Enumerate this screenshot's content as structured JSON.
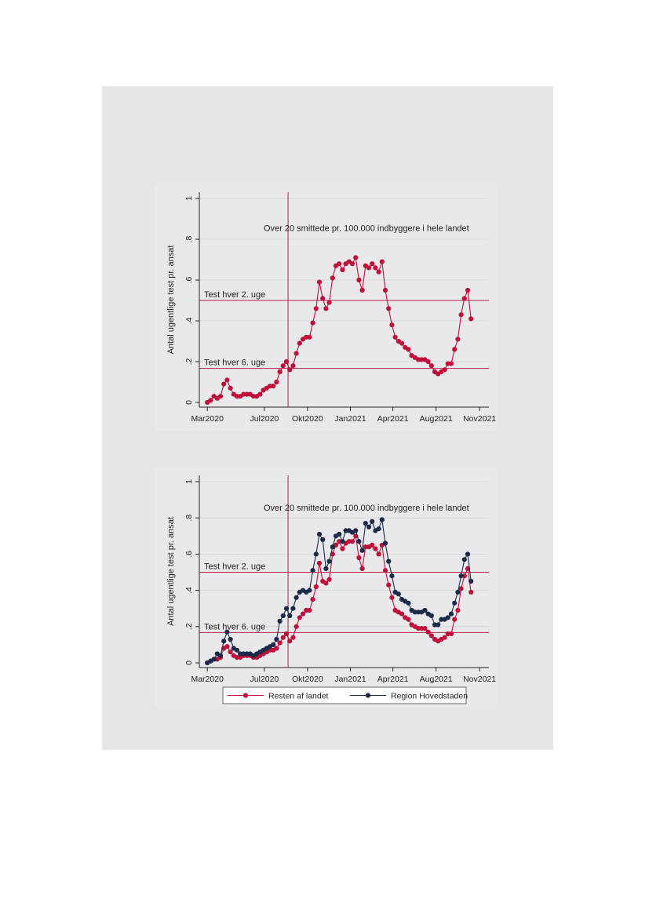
{
  "chart_data": [
    {
      "type": "line",
      "ylabel": "Antal ugentlige test pr. ansat",
      "xlabel": "",
      "ylim": [
        0,
        1
      ],
      "yticks": [
        0,
        0.2,
        0.4,
        0.6,
        0.8,
        1
      ],
      "ytick_labels": [
        "0",
        ".2",
        ".4",
        ".6",
        ".8",
        "1"
      ],
      "xticks": [
        {
          "week": 0,
          "label": "Mar2020"
        },
        {
          "week": 17.3,
          "label": "Jul2020"
        },
        {
          "week": 30.4,
          "label": "Okt2020"
        },
        {
          "week": 43.4,
          "label": "Jan2021"
        },
        {
          "week": 56.3,
          "label": "Apr2021"
        },
        {
          "week": 69.4,
          "label": "Aug2021"
        },
        {
          "week": 82.6,
          "label": "Nov2021"
        }
      ],
      "x_range_weeks": [
        -1,
        84
      ],
      "annotations": [
        {
          "text": "Over 20 smittede pr. 100.000 indbyggere i hele landet"
        },
        {
          "text": "Test hver 2. uge",
          "y": 0.5
        },
        {
          "text": "Test hver 6. uge",
          "y": 0.167
        }
      ],
      "vline_week": 24.5,
      "hlines": [
        0.5,
        0.167
      ],
      "grid": true,
      "legend": null,
      "series": [
        {
          "color": "#c0103a",
          "values": [
            0.0,
            0.01,
            0.03,
            0.02,
            0.03,
            0.09,
            0.11,
            0.07,
            0.04,
            0.03,
            0.03,
            0.04,
            0.04,
            0.04,
            0.03,
            0.03,
            0.04,
            0.06,
            0.07,
            0.08,
            0.08,
            0.1,
            0.15,
            0.18,
            0.2,
            0.16,
            0.18,
            0.24,
            0.29,
            0.31,
            0.32,
            0.32,
            0.39,
            0.46,
            0.59,
            0.51,
            0.46,
            0.49,
            0.61,
            0.67,
            0.68,
            0.65,
            0.68,
            0.69,
            0.68,
            0.71,
            0.6,
            0.55,
            0.67,
            0.66,
            0.68,
            0.66,
            0.64,
            0.69,
            0.55,
            0.46,
            0.38,
            0.32,
            0.3,
            0.29,
            0.27,
            0.26,
            0.23,
            0.22,
            0.21,
            0.21,
            0.21,
            0.2,
            0.18,
            0.15,
            0.14,
            0.15,
            0.16,
            0.19,
            0.19,
            0.26,
            0.31,
            0.43,
            0.51,
            0.55,
            0.41
          ]
        }
      ]
    },
    {
      "type": "line",
      "ylabel": "Antal ugentlige test pr. ansat",
      "xlabel": "",
      "ylim": [
        0,
        1
      ],
      "yticks": [
        0,
        0.2,
        0.4,
        0.6,
        0.8,
        1
      ],
      "ytick_labels": [
        "0",
        ".2",
        ".4",
        ".6",
        ".8",
        "1"
      ],
      "xticks": [
        {
          "week": 0,
          "label": "Mar2020"
        },
        {
          "week": 17.3,
          "label": "Jul2020"
        },
        {
          "week": 30.4,
          "label": "Okt2020"
        },
        {
          "week": 43.4,
          "label": "Jan2021"
        },
        {
          "week": 56.3,
          "label": "Apr2021"
        },
        {
          "week": 69.4,
          "label": "Aug2021"
        },
        {
          "week": 82.6,
          "label": "Nov2021"
        }
      ],
      "x_range_weeks": [
        -1,
        84
      ],
      "annotations": [
        {
          "text": "Over 20 smittede pr. 100.000 indbyggere i hele landet"
        },
        {
          "text": "Test hver 2. uge",
          "y": 0.5
        },
        {
          "text": "Test hver 6. uge",
          "y": 0.167
        }
      ],
      "vline_week": 24.5,
      "hlines": [
        0.5,
        0.167
      ],
      "grid": true,
      "legend": "bottom",
      "series": [
        {
          "name": "Resten af landet",
          "color": "#c0103a",
          "values": [
            0.0,
            0.01,
            0.02,
            0.02,
            0.03,
            0.08,
            0.09,
            0.06,
            0.04,
            0.03,
            0.03,
            0.04,
            0.04,
            0.04,
            0.03,
            0.03,
            0.04,
            0.05,
            0.06,
            0.07,
            0.07,
            0.08,
            0.11,
            0.14,
            0.16,
            0.12,
            0.14,
            0.2,
            0.25,
            0.27,
            0.29,
            0.29,
            0.35,
            0.42,
            0.55,
            0.45,
            0.44,
            0.46,
            0.6,
            0.65,
            0.67,
            0.63,
            0.66,
            0.67,
            0.67,
            0.7,
            0.58,
            0.52,
            0.64,
            0.64,
            0.65,
            0.63,
            0.6,
            0.65,
            0.51,
            0.43,
            0.36,
            0.29,
            0.28,
            0.27,
            0.25,
            0.24,
            0.21,
            0.2,
            0.19,
            0.19,
            0.19,
            0.17,
            0.15,
            0.13,
            0.12,
            0.13,
            0.14,
            0.16,
            0.16,
            0.24,
            0.29,
            0.41,
            0.48,
            0.52,
            0.39
          ]
        },
        {
          "name": "Region Hovedstaden",
          "color": "#1a2a48",
          "values": [
            0.0,
            0.01,
            0.02,
            0.05,
            0.04,
            0.12,
            0.17,
            0.13,
            0.08,
            0.07,
            0.05,
            0.05,
            0.05,
            0.05,
            0.04,
            0.05,
            0.06,
            0.07,
            0.08,
            0.09,
            0.1,
            0.13,
            0.23,
            0.26,
            0.3,
            0.26,
            0.3,
            0.36,
            0.39,
            0.4,
            0.39,
            0.4,
            0.51,
            0.6,
            0.71,
            0.68,
            0.52,
            0.56,
            0.64,
            0.7,
            0.71,
            0.67,
            0.73,
            0.73,
            0.72,
            0.73,
            0.67,
            0.62,
            0.77,
            0.75,
            0.78,
            0.73,
            0.74,
            0.79,
            0.66,
            0.56,
            0.48,
            0.39,
            0.38,
            0.35,
            0.34,
            0.33,
            0.29,
            0.28,
            0.28,
            0.28,
            0.29,
            0.27,
            0.26,
            0.21,
            0.21,
            0.24,
            0.24,
            0.25,
            0.27,
            0.33,
            0.39,
            0.48,
            0.57,
            0.6,
            0.45
          ]
        }
      ]
    }
  ]
}
